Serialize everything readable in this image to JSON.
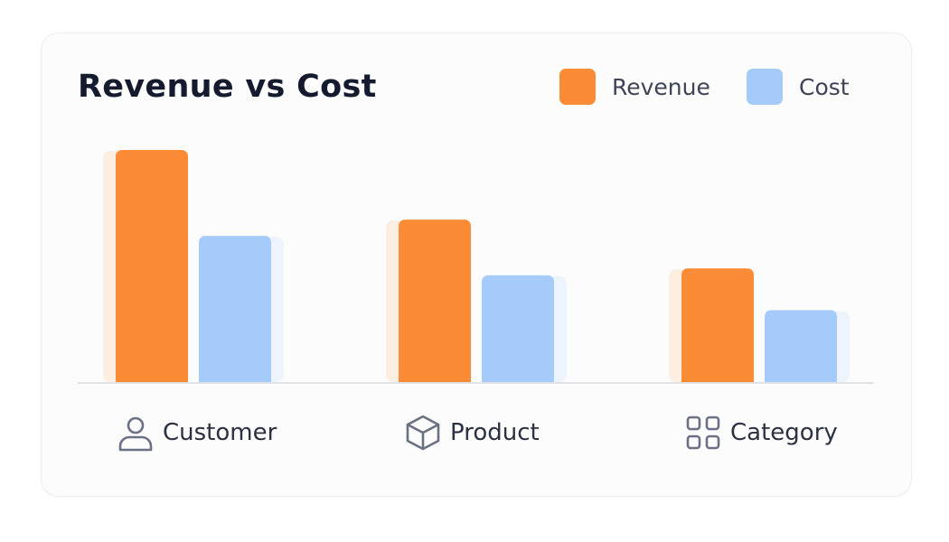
{
  "chart_data": {
    "type": "bar",
    "title": "Revenue vs Cost",
    "categories": [
      "Customer",
      "Product",
      "Category"
    ],
    "category_icons": [
      "user-icon",
      "box-icon",
      "grid-icon"
    ],
    "series": [
      {
        "name": "Revenue",
        "values": [
          100,
          70,
          49
        ]
      },
      {
        "name": "Cost",
        "values": [
          63,
          46,
          31
        ]
      }
    ],
    "ylim": [
      0,
      100
    ],
    "grid": false,
    "legend_position": "top-right",
    "colors": {
      "Revenue": "#fb8c35",
      "Cost": "#a5cbfb"
    }
  }
}
